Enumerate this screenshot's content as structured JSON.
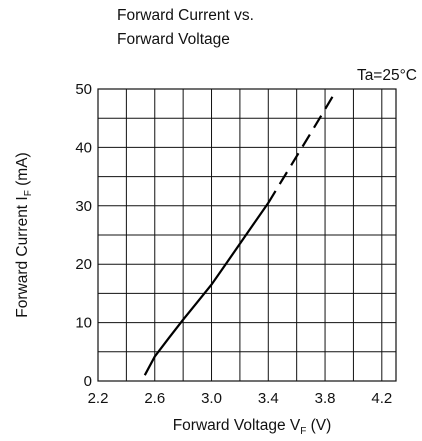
{
  "chart_data": {
    "type": "line",
    "title_lines": [
      "Forward Current vs.",
      "Forward Voltage"
    ],
    "condition": "Ta=25°C",
    "xlabel": {
      "main": "Forward Voltage  V",
      "sub": "F",
      "unit": " (V)"
    },
    "ylabel": {
      "main": "Forward Current  I",
      "sub": "F",
      "unit": " (mA)"
    },
    "xlim": [
      2.2,
      4.3
    ],
    "ylim": [
      0,
      50
    ],
    "x_gridlines": [
      2.2,
      2.4,
      2.6,
      2.8,
      3.0,
      3.2,
      3.4,
      3.6,
      3.8,
      4.0,
      4.2
    ],
    "y_gridlines": [
      0,
      5,
      10,
      15,
      20,
      25,
      30,
      35,
      40,
      45,
      50
    ],
    "x_ticks": [
      "2.2",
      "2.6",
      "3.0",
      "3.4",
      "3.8",
      "4.2"
    ],
    "y_ticks": [
      "0",
      "10",
      "20",
      "30",
      "40",
      "50"
    ],
    "grid": true,
    "series": [
      {
        "style": "solid",
        "x": [
          2.53,
          2.6,
          2.7,
          2.8,
          2.9,
          3.0,
          3.1,
          3.2,
          3.3,
          3.4
        ],
        "y": [
          1,
          4.2,
          7.4,
          10.5,
          13.5,
          16.5,
          20,
          23.5,
          27,
          30.5
        ]
      },
      {
        "style": "dashed",
        "x": [
          3.4,
          3.5,
          3.6,
          3.7,
          3.8,
          3.86
        ],
        "y": [
          30.5,
          34.5,
          38.5,
          42.5,
          46.5,
          49
        ]
      }
    ]
  }
}
